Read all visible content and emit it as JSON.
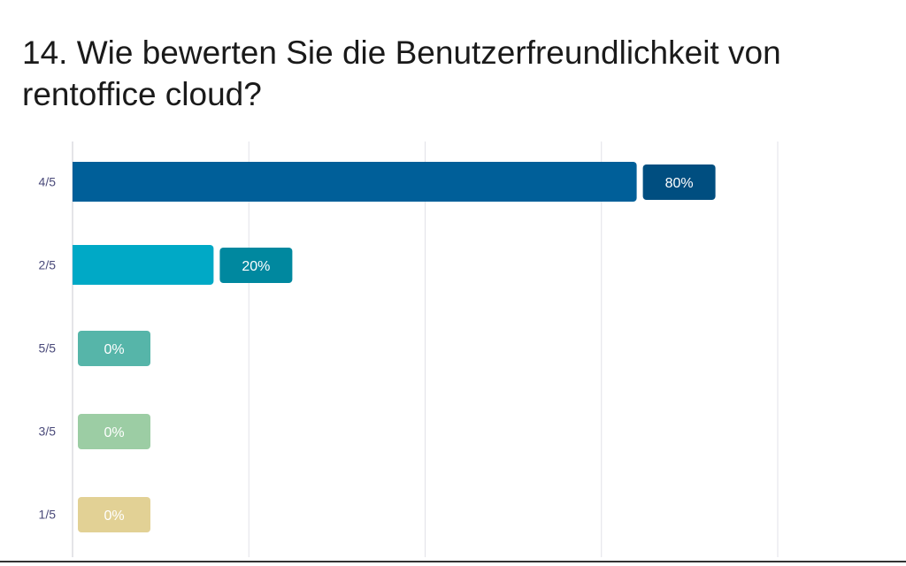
{
  "question": {
    "title": "14. Wie bewerten Sie die Benutzerfreundlichkeit von rentoffice cloud?"
  },
  "chart_data": {
    "type": "bar",
    "orientation": "horizontal",
    "title": "14. Wie bewerten Sie die Benutzerfreundlichkeit von rentoffice cloud?",
    "categories": [
      "4/5",
      "2/5",
      "5/5",
      "3/5",
      "1/5"
    ],
    "values": [
      80,
      20,
      0,
      0,
      0
    ],
    "value_labels": [
      "80%",
      "20%",
      "0%",
      "0%",
      "0%"
    ],
    "colors": [
      "#005f99",
      "#00a9c6",
      "#56b5a9",
      "#9ccda4",
      "#e2d195"
    ],
    "label_colors": [
      "#004e80",
      "#00889f",
      "#56b5a9",
      "#9ccda4",
      "#e2d195"
    ],
    "xlim": [
      0,
      100
    ],
    "grid": true,
    "xlabel": "",
    "ylabel": ""
  }
}
